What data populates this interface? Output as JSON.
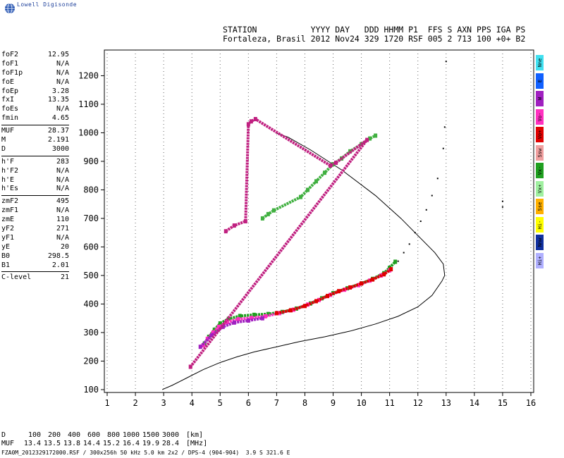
{
  "brand": {
    "logo_text": "Lowell Digisonde"
  },
  "header": {
    "line1": "STATION           YYYY DAY   DDD HHMM P1  FFS S AXN PPS IGA PS",
    "line2": "Fortaleza, Brasil 2012 Nov24 329 1720 RSF 005 2 713 100 +0+ B2"
  },
  "params": {
    "groups": [
      [
        {
          "k": "foF2",
          "v": "12.95"
        },
        {
          "k": "foF1",
          "v": "N/A"
        },
        {
          "k": "foF1p",
          "v": "N/A"
        },
        {
          "k": "foE",
          "v": "N/A"
        },
        {
          "k": "foEp",
          "v": "3.28"
        },
        {
          "k": "fxI",
          "v": "13.35"
        },
        {
          "k": "foEs",
          "v": "N/A"
        },
        {
          "k": "fmin",
          "v": "4.65"
        }
      ],
      [
        {
          "k": "MUF",
          "v": "28.37"
        },
        {
          "k": "M",
          "v": "2.191"
        },
        {
          "k": "D",
          "v": "3000"
        }
      ],
      [
        {
          "k": "h'F",
          "v": "283"
        },
        {
          "k": "h'F2",
          "v": "N/A"
        },
        {
          "k": "h'E",
          "v": "N/A"
        },
        {
          "k": "h'Es",
          "v": "N/A"
        }
      ],
      [
        {
          "k": "zmF2",
          "v": "495"
        },
        {
          "k": "zmF1",
          "v": "N/A"
        },
        {
          "k": "zmE",
          "v": "110"
        },
        {
          "k": "yF2",
          "v": "271"
        },
        {
          "k": "yF1",
          "v": "N/A"
        },
        {
          "k": "yE",
          "v": "20"
        },
        {
          "k": "B0",
          "v": "298.5"
        },
        {
          "k": "B1",
          "v": "2.01"
        }
      ],
      [
        {
          "k": "C-level",
          "v": "21"
        }
      ]
    ]
  },
  "legend": [
    {
      "label": "Nne",
      "color": "#40e0f0"
    },
    {
      "label": "E",
      "color": "#1060ff"
    },
    {
      "label": "W",
      "color": "#a020c0"
    },
    {
      "label": "Vo-",
      "color": "#ff30c0"
    },
    {
      "label": "Vo+",
      "color": "#e00000"
    },
    {
      "label": "Ssw",
      "color": "#f0a0a0"
    },
    {
      "label": "Vx-",
      "color": "#20a020"
    },
    {
      "label": "Vx+",
      "color": "#a0f0a0"
    },
    {
      "label": "Sse",
      "color": "#ffb000"
    },
    {
      "label": "Hi-",
      "color": "#ffff00"
    },
    {
      "label": "Nnw",
      "color": "#1030a0"
    },
    {
      "label": "Hi+",
      "color": "#b0b0ff"
    }
  ],
  "mufTable": {
    "d_label": "D",
    "muf_label": "MUF",
    "distances": [
      "100",
      "200",
      "400",
      "600",
      "800",
      "1000",
      "1500",
      "3000"
    ],
    "mufs": [
      "13.4",
      "13.5",
      "13.8",
      "14.4",
      "15.2",
      "16.4",
      "19.9",
      "28.4"
    ],
    "d_unit": "[km]",
    "muf_unit": "[MHz]"
  },
  "footer": "FZA0M_2012329172000.RSF / 300x256h 50 kHz 5.0 km 2x2 / DPS-4 (904-904)  3.9 S 321.6 E",
  "chart_data": {
    "type": "scatter",
    "xlim": [
      0.9,
      16.1
    ],
    "ylim": [
      90,
      1290
    ],
    "x_ticks": [
      1,
      2,
      3,
      4,
      5,
      6,
      7,
      8,
      9,
      10,
      11,
      12,
      13,
      14,
      15,
      16
    ],
    "y_ticks": [
      100,
      200,
      300,
      400,
      500,
      600,
      700,
      800,
      900,
      1000,
      1100,
      1200
    ],
    "grid": "dotted vertical",
    "series": [
      {
        "color": "#000000",
        "style": "line",
        "points": [
          [
            2.95,
            100
          ],
          [
            3.3,
            115
          ],
          [
            3.8,
            140
          ],
          [
            4.4,
            170
          ],
          [
            5,
            195
          ],
          [
            5.6,
            215
          ],
          [
            6.2,
            232
          ],
          [
            7,
            250
          ],
          [
            7.8,
            268
          ],
          [
            8.7,
            285
          ],
          [
            9.6,
            305
          ],
          [
            10.5,
            330
          ],
          [
            11.3,
            357
          ],
          [
            12,
            390
          ],
          [
            12.5,
            430
          ],
          [
            12.85,
            480
          ],
          [
            12.95,
            500
          ],
          [
            12.9,
            540
          ],
          [
            12.6,
            580
          ],
          [
            12.1,
            630
          ],
          [
            11.4,
            700
          ],
          [
            10.5,
            780
          ],
          [
            9.3,
            870
          ],
          [
            8.2,
            940
          ],
          [
            7.4,
            985
          ],
          [
            6.95,
            1000
          ]
        ]
      },
      {
        "color": "#000000",
        "style": "dots",
        "points": [
          [
            11.3,
            550
          ],
          [
            11.5,
            580
          ],
          [
            11.7,
            610
          ],
          [
            11.9,
            650
          ],
          [
            12.1,
            690
          ],
          [
            12.3,
            730
          ],
          [
            12.5,
            780
          ],
          [
            12.7,
            840
          ]
        ]
      },
      {
        "color": "#20a020",
        "style": "trace",
        "points": [
          [
            4.45,
            262
          ],
          [
            4.6,
            285
          ],
          [
            4.8,
            310
          ],
          [
            5.0,
            332
          ],
          [
            5.3,
            348
          ],
          [
            5.7,
            358
          ],
          [
            6.2,
            362
          ],
          [
            6.7,
            365
          ],
          [
            7.2,
            372
          ],
          [
            7.7,
            384
          ],
          [
            8.2,
            402
          ],
          [
            8.6,
            420
          ],
          [
            9.0,
            438
          ],
          [
            9.5,
            455
          ],
          [
            10.0,
            472
          ],
          [
            10.4,
            488
          ],
          [
            10.8,
            508
          ],
          [
            11.0,
            527
          ],
          [
            11.2,
            548
          ]
        ]
      },
      {
        "color": "#ff30c0",
        "style": "trace",
        "points": [
          [
            4.4,
            255
          ],
          [
            4.55,
            278
          ],
          [
            4.75,
            300
          ],
          [
            4.95,
            320
          ],
          [
            5.25,
            337
          ],
          [
            5.65,
            347
          ],
          [
            6.1,
            351
          ],
          [
            6.6,
            357
          ],
          [
            7.1,
            368
          ],
          [
            7.6,
            380
          ],
          [
            8.1,
            398
          ],
          [
            8.5,
            414
          ],
          [
            8.9,
            432
          ],
          [
            9.4,
            450
          ],
          [
            9.9,
            466
          ],
          [
            10.3,
            482
          ],
          [
            10.7,
            500
          ],
          [
            11.0,
            518
          ]
        ]
      },
      {
        "color": "#e00000",
        "style": "trace",
        "points": [
          [
            7.0,
            368
          ],
          [
            7.5,
            378
          ],
          [
            8.0,
            393
          ],
          [
            8.4,
            410
          ],
          [
            8.8,
            428
          ],
          [
            9.2,
            445
          ],
          [
            9.6,
            458
          ],
          [
            10.0,
            472
          ],
          [
            10.4,
            486
          ],
          [
            10.8,
            504
          ],
          [
            11.05,
            522
          ]
        ]
      },
      {
        "color": "#a020c0",
        "style": "trace",
        "points": [
          [
            4.3,
            250
          ],
          [
            4.7,
            290
          ],
          [
            5.1,
            320
          ],
          [
            5.5,
            335
          ],
          [
            6.0,
            342
          ],
          [
            6.5,
            350
          ]
        ]
      },
      {
        "color": "#40b040",
        "style": "trace",
        "points": [
          [
            6.5,
            700
          ],
          [
            6.7,
            715
          ],
          [
            6.9,
            728
          ],
          [
            7.85,
            775
          ],
          [
            8.1,
            800
          ],
          [
            8.4,
            830
          ],
          [
            8.7,
            860
          ],
          [
            9.0,
            890
          ],
          [
            9.3,
            910
          ],
          [
            9.6,
            935
          ],
          [
            10.0,
            960
          ],
          [
            10.3,
            980
          ],
          [
            10.5,
            990
          ]
        ]
      },
      {
        "color": "#c02080",
        "style": "trace",
        "points": [
          [
            5.2,
            655
          ],
          [
            5.5,
            675
          ],
          [
            5.9,
            690
          ],
          [
            6.0,
            1030
          ],
          [
            6.1,
            1040
          ],
          [
            6.25,
            1048
          ],
          [
            8.9,
            885
          ],
          [
            9.1,
            895
          ],
          [
            10.2,
            975
          ],
          [
            3.95,
            180
          ]
        ]
      },
      {
        "color": "#000000",
        "style": "sparse",
        "points": [
          [
            13.0,
            1250
          ],
          [
            12.95,
            1020
          ],
          [
            12.9,
            945
          ],
          [
            15.0,
            760
          ],
          [
            15.0,
            740
          ]
        ]
      }
    ]
  }
}
